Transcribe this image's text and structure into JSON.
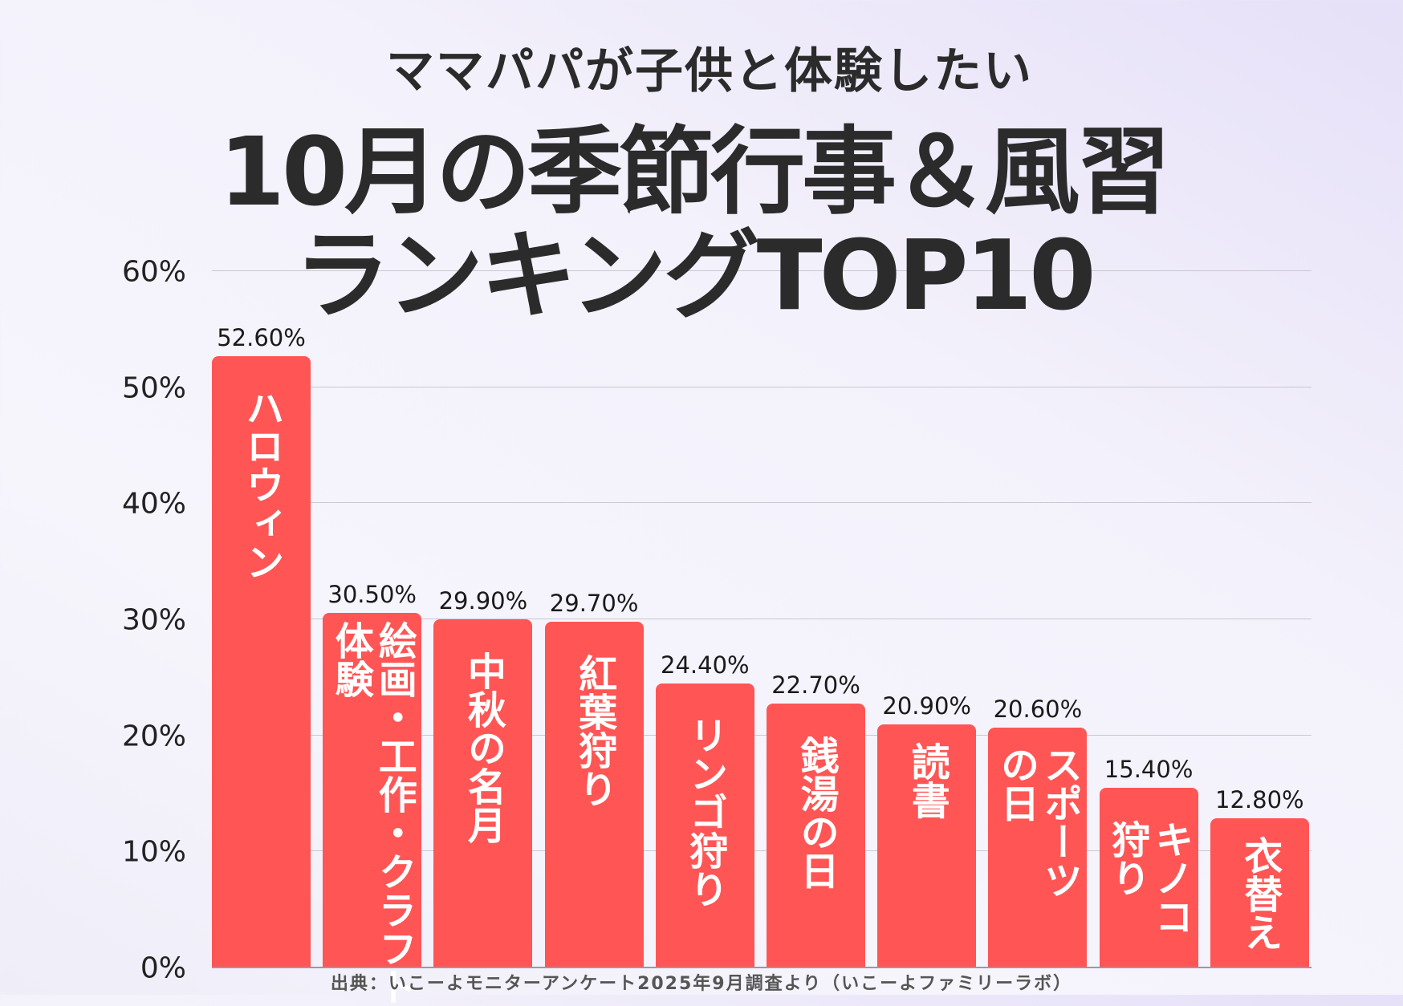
{
  "title": {
    "line1": "ママパパが子供と体験したい",
    "line2": "10月の季節行事＆風習",
    "line3": "ランキングTOP10"
  },
  "chart_data": {
    "type": "bar",
    "title": "ママパパが子供と体験したい 10月の季節行事＆風習 ランキングTOP10",
    "categories": [
      [
        "ハロウィン"
      ],
      [
        "絵画・工作・クラフト",
        "体験"
      ],
      [
        "中秋の名月"
      ],
      [
        "紅葉狩り"
      ],
      [
        "リンゴ狩り"
      ],
      [
        "銭湯の日"
      ],
      [
        "読書"
      ],
      [
        "スポーツ",
        "の日"
      ],
      [
        "キノコ",
        "狩り"
      ],
      [
        "衣替え"
      ]
    ],
    "values": [
      52.6,
      30.5,
      29.9,
      29.7,
      24.4,
      22.7,
      20.9,
      20.6,
      15.4,
      12.8
    ],
    "value_labels": [
      "52.60%",
      "30.50%",
      "29.90%",
      "29.70%",
      "24.40%",
      "22.70%",
      "20.90%",
      "20.60%",
      "15.40%",
      "12.80%"
    ],
    "yticks": [
      "0%",
      "10%",
      "20%",
      "30%",
      "40%",
      "50%",
      "60%"
    ],
    "ylim": [
      0,
      60
    ],
    "grid": true,
    "bar_color": "#ff5555",
    "xlabel": "",
    "ylabel": ""
  },
  "source": "出典：いこーよモニターアンケート2025年9月調査より（いこーよファミリーラボ）"
}
